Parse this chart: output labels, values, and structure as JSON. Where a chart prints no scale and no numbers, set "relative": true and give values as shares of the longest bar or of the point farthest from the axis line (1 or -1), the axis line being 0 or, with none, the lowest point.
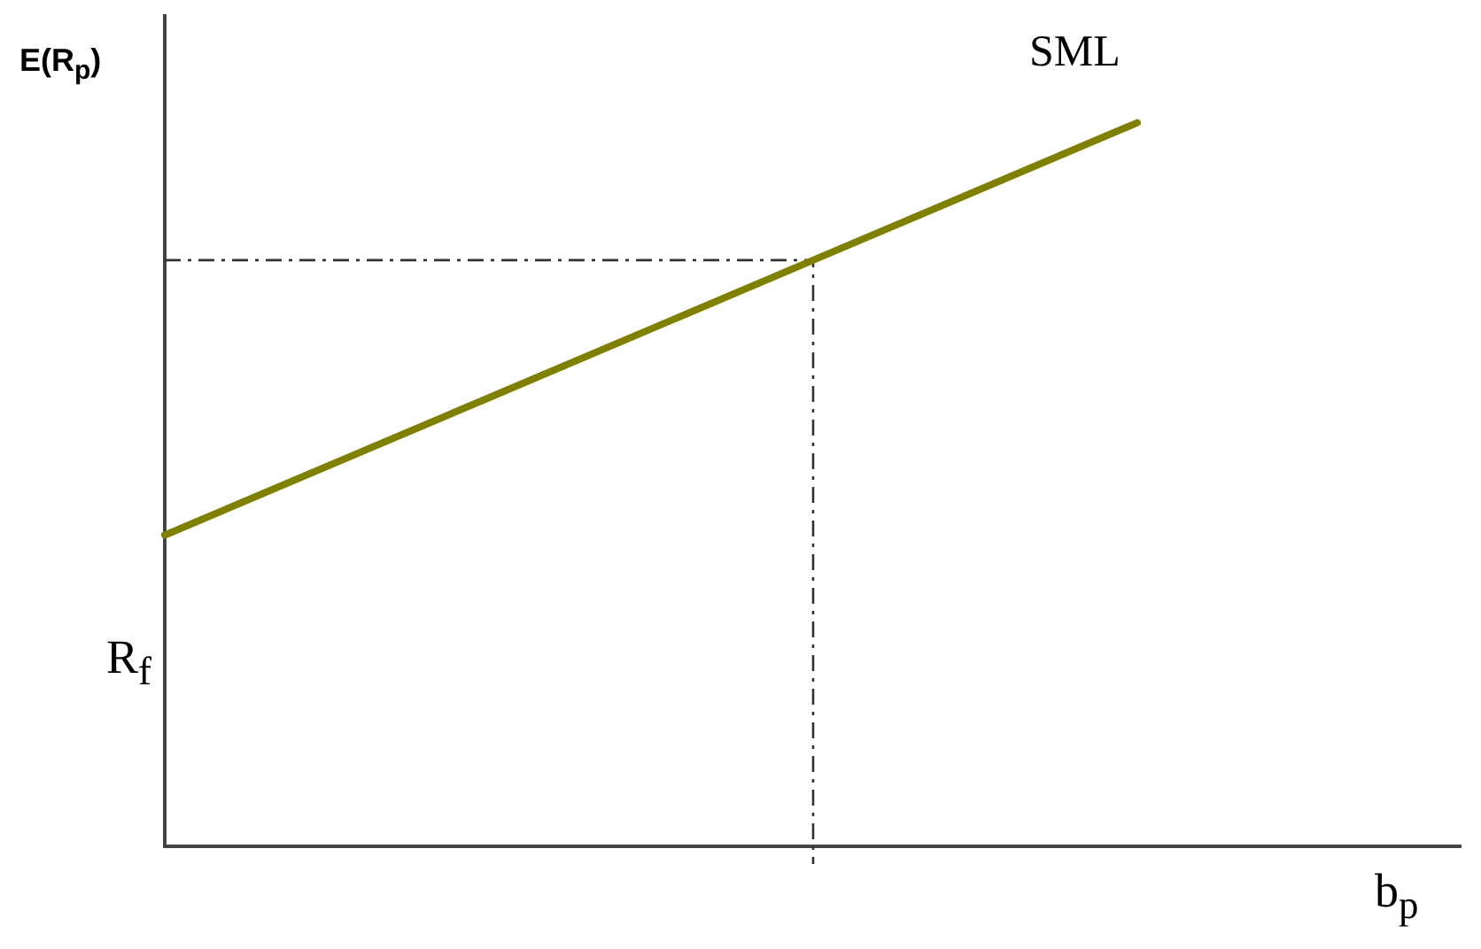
{
  "chart_data": {
    "type": "line",
    "relative": true,
    "ylabel": "E(R$_{p}$)",
    "xlabel": "b$_{p}$",
    "annotations": [
      "R$_{f}$"
    ],
    "categories": [
      null,
      null,
      null,
      null,
      null
    ],
    "series": [
      {
        "name": "SML",
        "color": "#808000",
        "values": [
          0.43,
          0.62,
          0.81,
          1,
          null
        ]
      }
    ],
    "ref_lines": [
      {
        "axis": "y",
        "value": 0.81,
        "color": "#333333",
        "line_style": "dashed"
      }
    ]
  }
}
